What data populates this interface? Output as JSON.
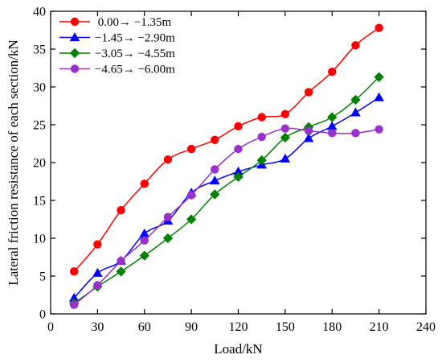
{
  "chart_data": {
    "type": "line",
    "xlabel": "Load/kN",
    "ylabel": "Lateral friction resistance of each section/kN",
    "xlim": [
      0,
      240
    ],
    "ylim": [
      0,
      40
    ],
    "xticks": [
      0,
      30,
      60,
      90,
      120,
      150,
      180,
      210,
      240
    ],
    "yticks": [
      0,
      5,
      10,
      15,
      20,
      25,
      30,
      35,
      40
    ],
    "grid": false,
    "legend_position": "top-left",
    "x": [
      15,
      30,
      45,
      60,
      75,
      90,
      105,
      120,
      135,
      150,
      165,
      180,
      195,
      210
    ],
    "series": [
      {
        "name": " 0.00→ −1.35m",
        "color": "#ff0000",
        "marker": "circle",
        "values": [
          5.6,
          9.2,
          13.7,
          17.2,
          20.4,
          21.8,
          23.0,
          24.8,
          26.0,
          26.4,
          29.3,
          32.0,
          35.5,
          37.8
        ]
      },
      {
        "name": "−1.45→ −2.90m",
        "color": "#0000ff",
        "marker": "triangle",
        "values": [
          2.1,
          5.4,
          7.0,
          10.6,
          12.3,
          16.0,
          17.6,
          18.8,
          19.7,
          20.5,
          23.2,
          24.8,
          26.6,
          28.6
        ]
      },
      {
        "name": "−3.05→ −4.55m",
        "color": "#008000",
        "marker": "diamond",
        "values": [
          1.4,
          3.6,
          5.6,
          7.7,
          10.0,
          12.5,
          15.8,
          18.1,
          20.3,
          23.3,
          24.7,
          26.0,
          28.3,
          31.3
        ]
      },
      {
        "name": "−4.65→ −6.00m",
        "color": "#9932cc",
        "marker": "circle",
        "values": [
          1.2,
          3.8,
          7.0,
          9.7,
          12.8,
          15.7,
          19.1,
          21.8,
          23.4,
          24.5,
          24.2,
          23.9,
          23.9,
          24.4
        ]
      }
    ]
  }
}
